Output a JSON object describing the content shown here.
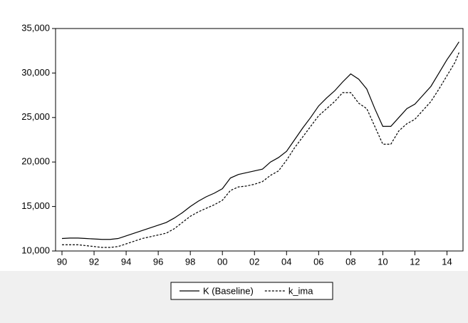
{
  "chart_data": {
    "type": "line",
    "x": [
      1990.0,
      1990.5,
      1991.0,
      1991.5,
      1992.0,
      1992.5,
      1993.0,
      1993.5,
      1994.0,
      1994.5,
      1995.0,
      1995.5,
      1996.0,
      1996.5,
      1997.0,
      1997.5,
      1998.0,
      1998.5,
      1999.0,
      1999.5,
      2000.0,
      2000.5,
      2001.0,
      2001.5,
      2002.0,
      2002.5,
      2003.0,
      2003.5,
      2004.0,
      2004.5,
      2005.0,
      2005.5,
      2006.0,
      2006.5,
      2007.0,
      2007.5,
      2008.0,
      2008.5,
      2009.0,
      2009.5,
      2010.0,
      2010.5,
      2011.0,
      2011.5,
      2012.0,
      2012.5,
      2013.0,
      2013.5,
      2014.0,
      2014.5,
      2014.75
    ],
    "series": [
      {
        "name": "K (Baseline)",
        "color": "#000000",
        "dashed": false,
        "values": [
          11400,
          11450,
          11450,
          11400,
          11350,
          11300,
          11300,
          11400,
          11700,
          12000,
          12300,
          12600,
          12900,
          13200,
          13700,
          14300,
          15000,
          15600,
          16100,
          16500,
          17000,
          18200,
          18600,
          18800,
          19000,
          19200,
          20000,
          20500,
          21200,
          22500,
          23800,
          25000,
          26300,
          27200,
          28000,
          29000,
          29900,
          29300,
          28200,
          26000,
          24000,
          24000,
          25000,
          26000,
          26500,
          27500,
          28500,
          30000,
          31500,
          32800,
          33500
        ]
      },
      {
        "name": "k_ima",
        "color": "#000000",
        "dashed": true,
        "values": [
          10700,
          10700,
          10700,
          10600,
          10500,
          10400,
          10400,
          10500,
          10800,
          11100,
          11400,
          11600,
          11800,
          12000,
          12500,
          13200,
          13900,
          14400,
          14800,
          15200,
          15700,
          16800,
          17200,
          17300,
          17500,
          17800,
          18500,
          19000,
          20200,
          21600,
          22800,
          24000,
          25200,
          26000,
          26800,
          27800,
          27800,
          26600,
          26000,
          24000,
          22000,
          22000,
          23500,
          24300,
          24800,
          25800,
          26800,
          28200,
          29700,
          31200,
          32300
        ]
      }
    ],
    "xlim": [
      1989.6,
      2015.0
    ],
    "xticks": [
      {
        "value": 1990,
        "label": "90"
      },
      {
        "value": 1992,
        "label": "92"
      },
      {
        "value": 1994,
        "label": "94"
      },
      {
        "value": 1996,
        "label": "96"
      },
      {
        "value": 1998,
        "label": "98"
      },
      {
        "value": 2000,
        "label": "00"
      },
      {
        "value": 2002,
        "label": "02"
      },
      {
        "value": 2004,
        "label": "04"
      },
      {
        "value": 2006,
        "label": "06"
      },
      {
        "value": 2008,
        "label": "08"
      },
      {
        "value": 2010,
        "label": "10"
      },
      {
        "value": 2012,
        "label": "12"
      },
      {
        "value": 2014,
        "label": "14"
      }
    ],
    "ylim": [
      10000,
      35000
    ],
    "yticks": [
      {
        "value": 10000,
        "label": "10,000"
      },
      {
        "value": 15000,
        "label": "15,000"
      },
      {
        "value": 20000,
        "label": "20,000"
      },
      {
        "value": 25000,
        "label": "25,000"
      },
      {
        "value": 30000,
        "label": "30,000"
      },
      {
        "value": 35000,
        "label": "35,000"
      }
    ],
    "legend": "bottom"
  }
}
